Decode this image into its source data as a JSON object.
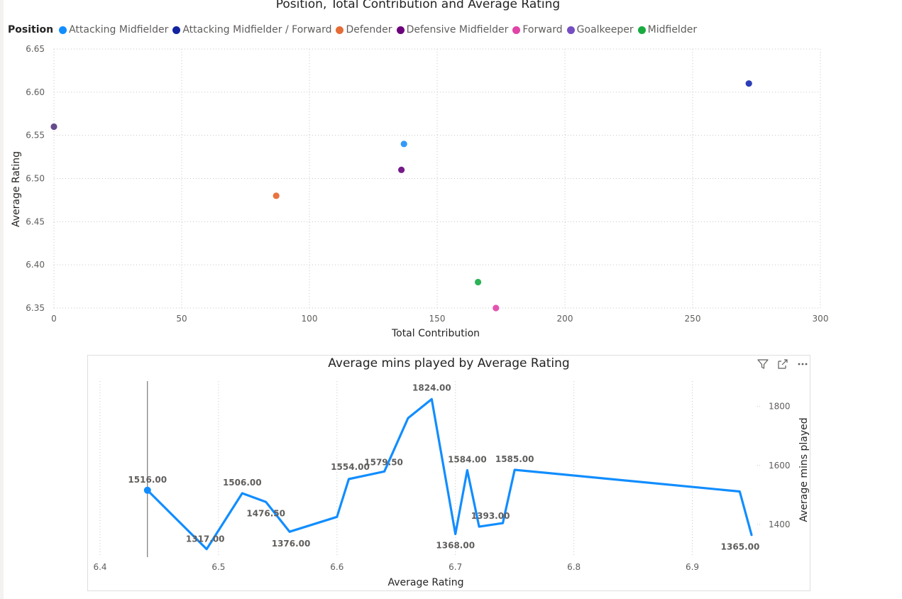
{
  "chart_data": [
    {
      "type": "scatter",
      "title": "Position, Total Contribution and Average Rating",
      "xlabel": "Total Contribution",
      "ylabel": "Average Rating",
      "xlim": [
        0,
        300
      ],
      "ylim": [
        6.35,
        6.65
      ],
      "x_ticks": [
        "0",
        "50",
        "100",
        "150",
        "200",
        "250",
        "300"
      ],
      "y_ticks": [
        "6.35",
        "6.40",
        "6.45",
        "6.50",
        "6.55",
        "6.60",
        "6.65"
      ],
      "grid": true,
      "legend": {
        "title": "Position",
        "placement": "top-left",
        "items": [
          {
            "name": "Attacking Midfielder",
            "color": "#118DFF"
          },
          {
            "name": "Attacking Midfielder / Forward",
            "color": "#12239E"
          },
          {
            "name": "Defender",
            "color": "#E66C37"
          },
          {
            "name": "Defensive Midfielder",
            "color": "#6B007B"
          },
          {
            "name": "Forward",
            "color": "#E044A7"
          },
          {
            "name": "Goalkeeper",
            "color": "#744EC2"
          },
          {
            "name": "Midfielder",
            "color": "#1AAB40"
          }
        ]
      },
      "points": [
        {
          "series": "Attacking Midfielder",
          "x": 137,
          "y": 6.54,
          "color": "#3599F8"
        },
        {
          "series": "Attacking Midfielder / Forward",
          "x": 272,
          "y": 6.61,
          "color": "#2B3EB5"
        },
        {
          "series": "Defender",
          "x": 87,
          "y": 6.48,
          "color": "#E8743F"
        },
        {
          "series": "Defensive Midfielder",
          "x": 136,
          "y": 6.51,
          "color": "#751B88"
        },
        {
          "series": "Forward",
          "x": 173,
          "y": 6.35,
          "color": "#E255B0"
        },
        {
          "series": "Goalkeeper",
          "x": 0,
          "y": 6.56,
          "color": "#664A8E"
        },
        {
          "series": "Midfielder",
          "x": 166,
          "y": 6.38,
          "color": "#2DB356"
        }
      ]
    },
    {
      "type": "line",
      "title": "Average mins played by Average Rating",
      "xlabel": "Average Rating",
      "ylabel": "Average mins played",
      "xlim": [
        6.4,
        6.95
      ],
      "ylim": [
        1290,
        1885
      ],
      "x_ticks": [
        "6.4",
        "6.5",
        "6.6",
        "6.7",
        "6.8",
        "6.9"
      ],
      "y_ticks": [
        "1400",
        "1600",
        "1800"
      ],
      "y_axis_position": "right",
      "grid": true,
      "color": "#118DFF",
      "x": [
        6.44,
        6.49,
        6.52,
        6.54,
        6.56,
        6.6,
        6.61,
        6.64,
        6.66,
        6.68,
        6.7,
        6.71,
        6.72,
        6.74,
        6.75,
        6.94,
        6.95
      ],
      "y": [
        1516,
        1317,
        1506,
        1476.5,
        1376,
        1426,
        1554,
        1579.5,
        1760,
        1824,
        1368,
        1584,
        1393,
        1405,
        1585,
        1512,
        1365
      ],
      "highlight_index": 0,
      "data_labels": [
        {
          "index": 0,
          "text": "1516.00"
        },
        {
          "index": 1,
          "text": "1317.00"
        },
        {
          "index": 2,
          "text": "1506.00"
        },
        {
          "index": 3,
          "text": "1476.50"
        },
        {
          "index": 4,
          "text": "1376.00"
        },
        {
          "index": 6,
          "text": "1554.00"
        },
        {
          "index": 7,
          "text": "1579.50"
        },
        {
          "index": 9,
          "text": "1824.00"
        },
        {
          "index": 10,
          "text": "1368.00"
        },
        {
          "index": 11,
          "text": "1584.00"
        },
        {
          "index": 12,
          "text": "1393.00"
        },
        {
          "index": 14,
          "text": "1585.00"
        },
        {
          "index": 16,
          "text": "1365.00"
        }
      ],
      "header_icons": [
        "filter-icon",
        "focus-mode-icon",
        "more-options-icon"
      ]
    }
  ]
}
